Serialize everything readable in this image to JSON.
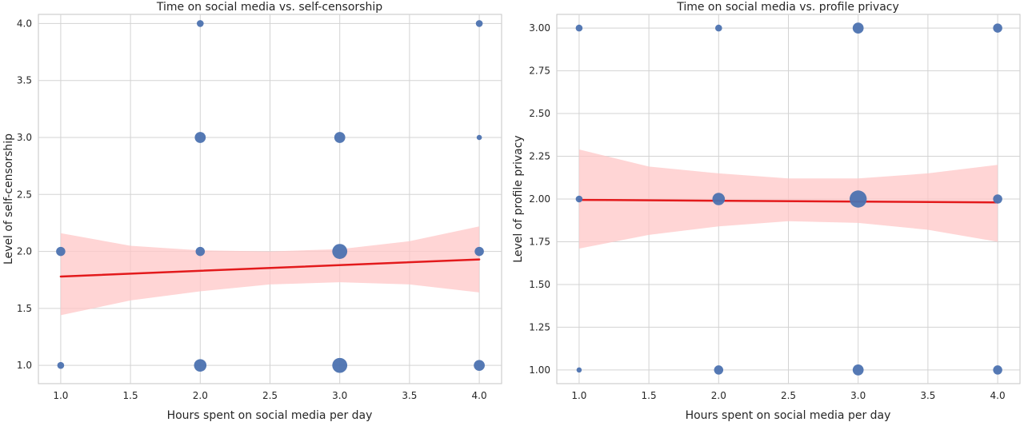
{
  "colors": {
    "point": "#4c72b0",
    "fit_line": "#e31a1c",
    "ci_band": "#ffc7c7",
    "grid": "#d3d3d3",
    "frame": "#c6c6c6"
  },
  "chart_data": [
    {
      "type": "scatter",
      "title": "Time on social media vs. self-censorship",
      "xlabel": "Hours spent on social media per day",
      "ylabel": "Level of self-censorship",
      "xlim": [
        0.84,
        4.16
      ],
      "ylim": [
        0.84,
        4.08
      ],
      "xticks": [
        "1.0",
        "1.5",
        "2.0",
        "2.5",
        "3.0",
        "3.5",
        "4.0"
      ],
      "yticks": [
        "1.0",
        "1.5",
        "2.0",
        "2.5",
        "3.0",
        "3.5",
        "4.0"
      ],
      "points": [
        {
          "x": 1,
          "y": 1,
          "count": 1
        },
        {
          "x": 1,
          "y": 2,
          "count": 2
        },
        {
          "x": 2,
          "y": 1,
          "count": 4
        },
        {
          "x": 2,
          "y": 2,
          "count": 2
        },
        {
          "x": 2,
          "y": 3,
          "count": 3
        },
        {
          "x": 2,
          "y": 4,
          "count": 1
        },
        {
          "x": 3,
          "y": 1,
          "count": 6
        },
        {
          "x": 3,
          "y": 2,
          "count": 6
        },
        {
          "x": 3,
          "y": 3,
          "count": 3
        },
        {
          "x": 4,
          "y": 1,
          "count": 3
        },
        {
          "x": 4,
          "y": 2,
          "count": 2
        },
        {
          "x": 4,
          "y": 3,
          "count": 0.5
        },
        {
          "x": 4,
          "y": 4,
          "count": 1
        }
      ],
      "fit": {
        "x": [
          1,
          4
        ],
        "y": [
          1.78,
          1.93
        ]
      },
      "ci": {
        "x": [
          1.0,
          1.5,
          2.0,
          2.5,
          3.0,
          3.5,
          4.0
        ],
        "lower": [
          1.44,
          1.57,
          1.65,
          1.71,
          1.73,
          1.71,
          1.64
        ],
        "upper": [
          2.16,
          2.05,
          2.01,
          2.0,
          2.02,
          2.09,
          2.22
        ]
      }
    },
    {
      "type": "scatter",
      "title": "Time on social media vs. profile privacy",
      "xlabel": "Hours spent on social media per day",
      "ylabel": "Level of profile privacy",
      "xlim": [
        0.84,
        4.16
      ],
      "ylim": [
        0.92,
        3.08
      ],
      "xticks": [
        "1.0",
        "1.5",
        "2.0",
        "2.5",
        "3.0",
        "3.5",
        "4.0"
      ],
      "yticks": [
        "1.00",
        "1.25",
        "1.50",
        "1.75",
        "2.00",
        "2.25",
        "2.50",
        "2.75",
        "3.00"
      ],
      "points": [
        {
          "x": 1,
          "y": 1,
          "count": 0.5
        },
        {
          "x": 1,
          "y": 2,
          "count": 1
        },
        {
          "x": 1,
          "y": 3,
          "count": 1
        },
        {
          "x": 2,
          "y": 1,
          "count": 2
        },
        {
          "x": 2,
          "y": 2,
          "count": 4
        },
        {
          "x": 2,
          "y": 3,
          "count": 1
        },
        {
          "x": 3,
          "y": 1,
          "count": 3
        },
        {
          "x": 3,
          "y": 2,
          "count": 8
        },
        {
          "x": 3,
          "y": 3,
          "count": 3
        },
        {
          "x": 4,
          "y": 1,
          "count": 2
        },
        {
          "x": 4,
          "y": 2,
          "count": 2
        },
        {
          "x": 4,
          "y": 3,
          "count": 2
        }
      ],
      "fit": {
        "x": [
          1,
          4
        ],
        "y": [
          1.995,
          1.98
        ]
      },
      "ci": {
        "x": [
          1.0,
          1.5,
          2.0,
          2.5,
          3.0,
          3.5,
          4.0
        ],
        "lower": [
          1.71,
          1.79,
          1.84,
          1.87,
          1.86,
          1.82,
          1.75
        ],
        "upper": [
          2.29,
          2.19,
          2.15,
          2.12,
          2.12,
          2.15,
          2.2
        ]
      }
    }
  ]
}
